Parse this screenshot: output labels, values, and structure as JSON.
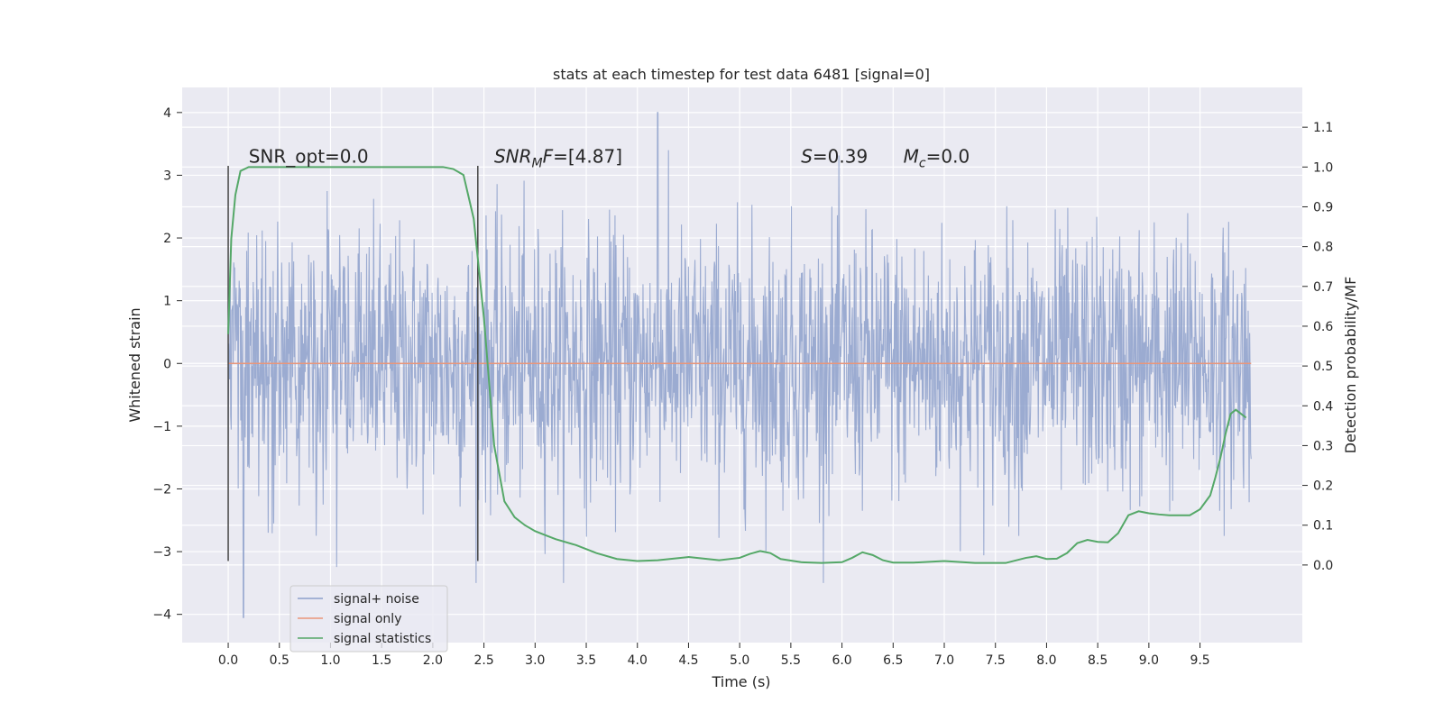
{
  "chart_data": {
    "type": "line",
    "title": "stats at each timestep for test data 6481 [signal=0]",
    "xlabel": "Time (s)",
    "ylabel": "Whitened strain",
    "y2label": "Detection probability/MF",
    "xlim": [
      -0.45,
      10.5
    ],
    "ylim": [
      -4.45,
      4.4
    ],
    "y2lim": [
      -0.195,
      1.2
    ],
    "x_ticks": [
      0.0,
      0.5,
      1.0,
      1.5,
      2.0,
      2.5,
      3.0,
      3.5,
      4.0,
      4.5,
      5.0,
      5.5,
      6.0,
      6.5,
      7.0,
      7.5,
      8.0,
      8.5,
      9.0,
      9.5
    ],
    "x_tick_labels": [
      "0.0",
      "0.5",
      "1.0",
      "1.5",
      "2.0",
      "2.5",
      "3.0",
      "3.5",
      "4.0",
      "4.5",
      "5.0",
      "5.5",
      "6.0",
      "6.5",
      "7.0",
      "7.5",
      "8.0",
      "8.5",
      "9.0",
      "9.5"
    ],
    "y_ticks": [
      4,
      3,
      2,
      1,
      0,
      -1,
      -2,
      -3,
      -4
    ],
    "y_tick_labels": [
      "4",
      "3",
      "2",
      "1",
      "0",
      "−1",
      "−2",
      "−3",
      "−4"
    ],
    "y2_ticks": [
      1.1,
      1.0,
      0.9,
      0.8,
      0.7,
      0.6,
      0.5,
      0.4,
      0.3,
      0.2,
      0.1,
      0.0
    ],
    "y2_tick_labels": [
      "1.1",
      "1.0",
      "0.9",
      "0.8",
      "0.7",
      "0.6",
      "0.5",
      "0.4",
      "0.3",
      "0.2",
      "0.1",
      "0.0"
    ],
    "grid": true,
    "background": "#eaeaf2",
    "legend_position": "lower-left",
    "vertical_markers": {
      "x": [
        0.0,
        2.44
      ],
      "y_range": [
        -3.15,
        3.15
      ],
      "color": "#444444"
    },
    "annotations": [
      {
        "prefix": "SNR_opt",
        "sub": "",
        "suffix": "=0.0",
        "x": 0.2,
        "y": 3.2,
        "italic": false
      },
      {
        "prefix": "SNR",
        "sub": "M",
        "suffix": "F=[4.87]",
        "x": 2.6,
        "y": 3.2,
        "italic": true
      },
      {
        "prefix": "S",
        "sub": "",
        "suffix": "=0.39",
        "x": 5.6,
        "y": 3.2,
        "italic": true
      },
      {
        "prefix": "M",
        "sub": "c",
        "suffix": "=0.0",
        "x": 6.6,
        "y": 3.2,
        "italic": true
      }
    ],
    "series": [
      {
        "name": "signal+ noise",
        "color": "#8da0cb",
        "axis": "left",
        "style": "noise",
        "x_range": [
          0.0,
          10.0
        ],
        "samples": 2048,
        "band_1sigma": 1.0,
        "extremes": {
          "max": 4.0,
          "max_x": 4.2,
          "min": -4.05,
          "min_x": 0.15
        }
      },
      {
        "name": "signal only",
        "color": "#e9967a",
        "axis": "left",
        "x": [
          0.0,
          10.0
        ],
        "y": [
          0.0,
          0.0
        ]
      },
      {
        "name": "signal statistics",
        "color": "#55a868",
        "axis": "right",
        "x": [
          0.0,
          0.03,
          0.07,
          0.12,
          0.2,
          0.3,
          0.5,
          1.0,
          1.5,
          2.0,
          2.1,
          2.2,
          2.3,
          2.4,
          2.5,
          2.6,
          2.7,
          2.8,
          2.9,
          3.0,
          3.1,
          3.2,
          3.4,
          3.6,
          3.8,
          4.0,
          4.2,
          4.5,
          4.8,
          5.0,
          5.1,
          5.2,
          5.3,
          5.4,
          5.6,
          5.8,
          6.0,
          6.1,
          6.2,
          6.3,
          6.4,
          6.5,
          6.7,
          7.0,
          7.3,
          7.6,
          7.8,
          7.9,
          8.0,
          8.1,
          8.2,
          8.3,
          8.4,
          8.5,
          8.6,
          8.7,
          8.8,
          8.9,
          9.0,
          9.1,
          9.2,
          9.3,
          9.4,
          9.5,
          9.6,
          9.65,
          9.7,
          9.75,
          9.8,
          9.85,
          9.9,
          9.95
        ],
        "y": [
          0.58,
          0.82,
          0.93,
          0.99,
          1.0,
          1.0,
          1.0,
          1.0,
          1.0,
          1.0,
          1.0,
          0.995,
          0.98,
          0.87,
          0.62,
          0.3,
          0.16,
          0.12,
          0.1,
          0.085,
          0.075,
          0.065,
          0.05,
          0.03,
          0.015,
          0.01,
          0.012,
          0.02,
          0.012,
          0.018,
          0.028,
          0.035,
          0.03,
          0.015,
          0.007,
          0.005,
          0.007,
          0.018,
          0.032,
          0.025,
          0.012,
          0.006,
          0.006,
          0.01,
          0.005,
          0.005,
          0.018,
          0.022,
          0.015,
          0.016,
          0.03,
          0.055,
          0.063,
          0.058,
          0.057,
          0.08,
          0.125,
          0.135,
          0.13,
          0.127,
          0.125,
          0.125,
          0.125,
          0.14,
          0.175,
          0.22,
          0.27,
          0.33,
          0.38,
          0.39,
          0.38,
          0.37
        ]
      }
    ]
  }
}
